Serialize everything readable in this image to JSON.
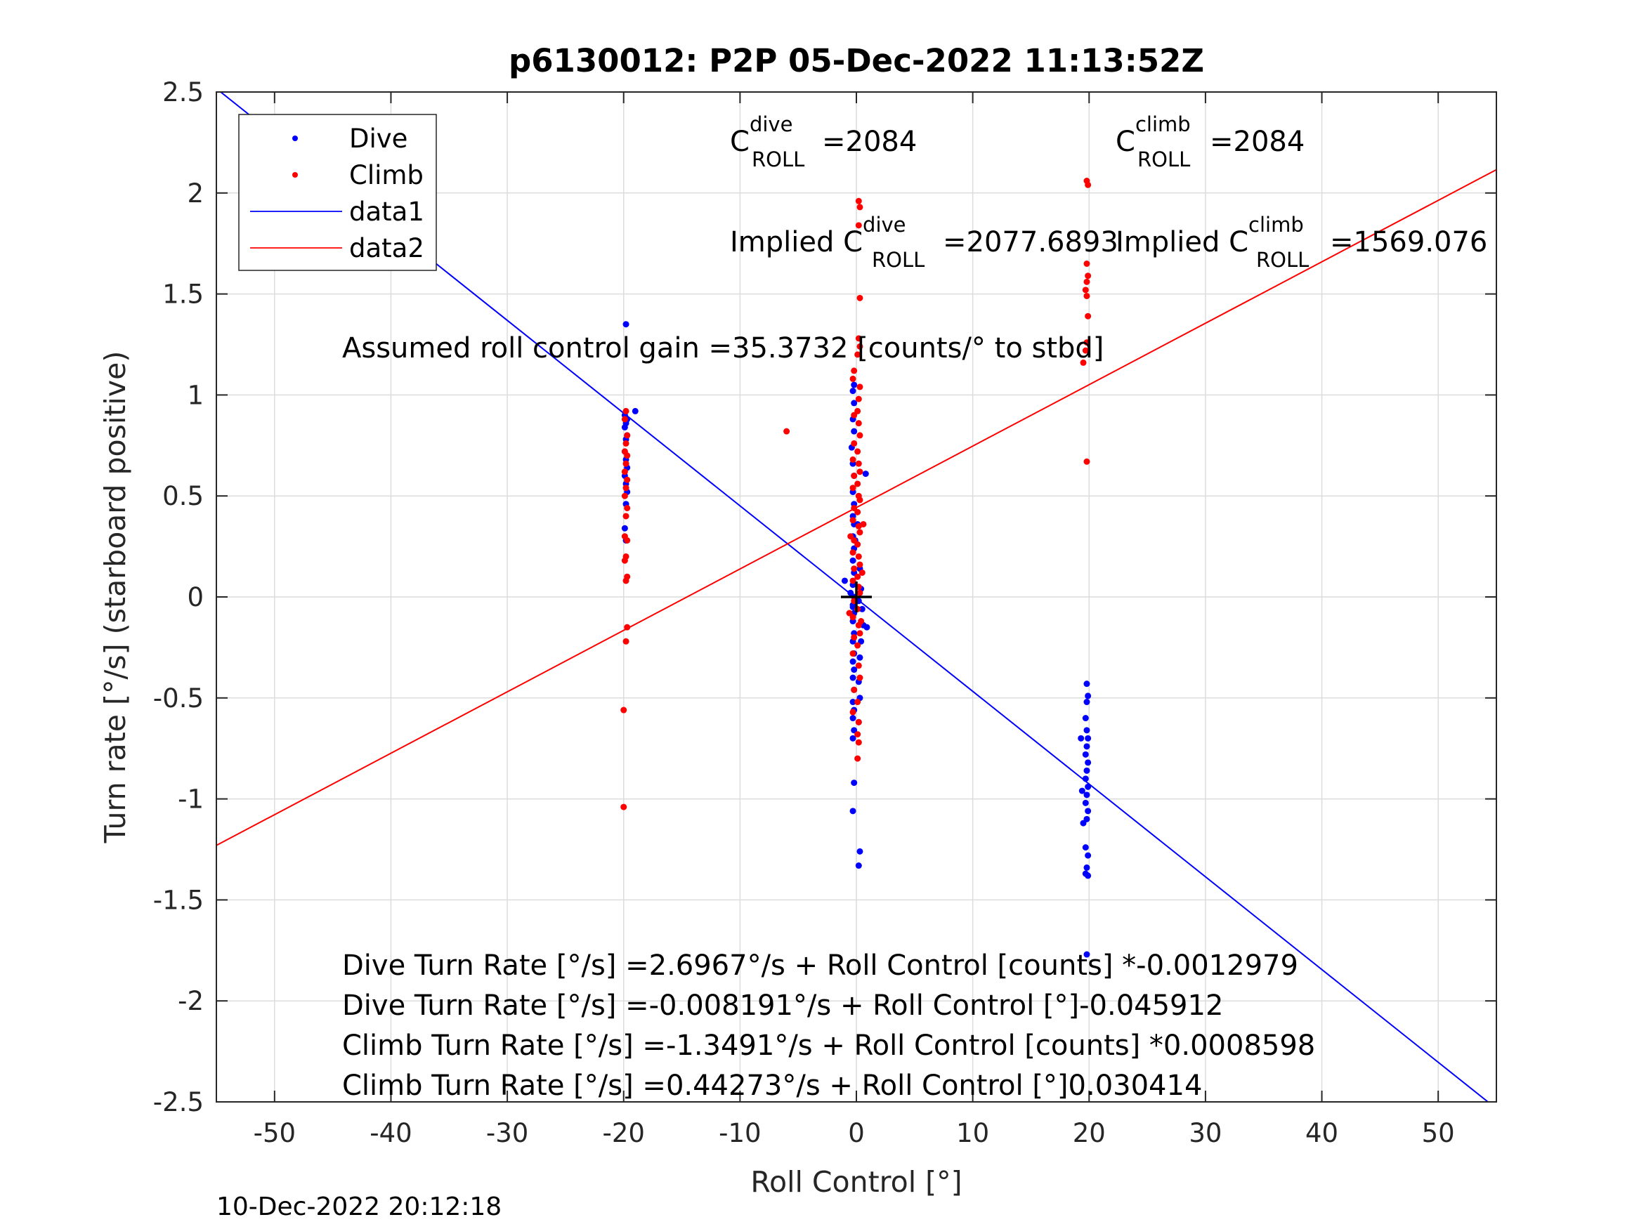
{
  "chart_data": {
    "type": "scatter",
    "title": "p6130012: P2P 05-Dec-2022 11:13:52Z",
    "xlabel": "Roll Control [°]",
    "ylabel": "Turn rate [°/s] (starboard positive)",
    "xlim": [
      -55,
      55
    ],
    "ylim": [
      -2.5,
      2.5
    ],
    "xticks": [
      -50,
      -40,
      -30,
      -20,
      -10,
      0,
      10,
      20,
      30,
      40,
      50
    ],
    "xtick_labels": [
      "-50",
      "-40",
      "-30",
      "-20",
      "-10",
      "0",
      "10",
      "20",
      "30",
      "40",
      "50"
    ],
    "yticks": [
      -2.5,
      -2,
      -1.5,
      -1,
      -0.5,
      0,
      0.5,
      1,
      1.5,
      2,
      2.5
    ],
    "ytick_labels": [
      "-2.5",
      "-2",
      "-1.5",
      "-1",
      "-0.5",
      "0",
      "0.5",
      "1",
      "1.5",
      "2",
      "2.5"
    ],
    "grid": true,
    "legend_position": "top-left",
    "legend": [
      "Dive",
      "Climb",
      "data1",
      "data2"
    ],
    "colors": {
      "dive": "#0000ff",
      "climb": "#ff0000",
      "axes": "#262626",
      "grid": "#dcdcdc",
      "marker": "#000000"
    },
    "origin_marker": {
      "x": 0,
      "y": 0
    },
    "series": [
      {
        "name": "Dive",
        "kind": "points",
        "points": [
          [
            -19.8,
            1.35
          ],
          [
            -19.0,
            0.92
          ],
          [
            -19.9,
            0.9
          ],
          [
            -19.7,
            0.88
          ],
          [
            -19.8,
            0.86
          ],
          [
            -19.9,
            0.84
          ],
          [
            -19.7,
            0.8
          ],
          [
            -19.8,
            0.78
          ],
          [
            -19.9,
            0.72
          ],
          [
            -19.8,
            0.68
          ],
          [
            -19.7,
            0.64
          ],
          [
            -19.9,
            0.6
          ],
          [
            -19.8,
            0.56
          ],
          [
            -19.7,
            0.52
          ],
          [
            -19.8,
            0.46
          ],
          [
            -19.9,
            0.34
          ],
          [
            -19.8,
            0.28
          ],
          [
            -1.0,
            0.08
          ],
          [
            -0.5,
            0.02
          ],
          [
            -0.3,
            -0.04
          ],
          [
            -0.2,
            1.05
          ],
          [
            -0.3,
            1.02
          ],
          [
            -0.2,
            0.96
          ],
          [
            -0.3,
            0.88
          ],
          [
            -0.2,
            0.82
          ],
          [
            -0.4,
            0.74
          ],
          [
            -0.3,
            0.66
          ],
          [
            -0.2,
            0.6
          ],
          [
            -0.3,
            0.52
          ],
          [
            -0.2,
            0.46
          ],
          [
            -0.3,
            0.4
          ],
          [
            -0.2,
            0.36
          ],
          [
            -0.3,
            0.3
          ],
          [
            -0.2,
            0.24
          ],
          [
            -0.3,
            0.18
          ],
          [
            -0.2,
            0.12
          ],
          [
            -0.3,
            0.06
          ],
          [
            -0.2,
            0.0
          ],
          [
            -0.3,
            -0.05
          ],
          [
            -0.2,
            -0.08
          ],
          [
            -0.3,
            -0.12
          ],
          [
            -0.2,
            -0.18
          ],
          [
            -0.3,
            -0.22
          ],
          [
            -0.2,
            -0.28
          ],
          [
            -0.3,
            -0.32
          ],
          [
            -0.2,
            -0.36
          ],
          [
            -0.3,
            -0.4
          ],
          [
            -0.2,
            -0.46
          ],
          [
            -0.3,
            -0.52
          ],
          [
            -0.2,
            -0.56
          ],
          [
            -0.3,
            -0.6
          ],
          [
            -0.2,
            -0.66
          ],
          [
            -0.3,
            -0.7
          ],
          [
            -0.2,
            -0.92
          ],
          [
            -0.3,
            -1.06
          ],
          [
            0.2,
            -0.02
          ],
          [
            0.4,
            0.04
          ],
          [
            0.3,
            0.14
          ],
          [
            0.5,
            -0.06
          ],
          [
            0.4,
            -0.22
          ],
          [
            0.3,
            -0.3
          ],
          [
            0.2,
            -0.42
          ],
          [
            0.3,
            -0.5
          ],
          [
            0.2,
            -0.62
          ],
          [
            0.3,
            -1.26
          ],
          [
            0.2,
            -1.33
          ],
          [
            0.6,
            -0.14
          ],
          [
            0.8,
            0.61
          ],
          [
            0.9,
            -0.15
          ],
          [
            0.1,
            0.36
          ],
          [
            -0.1,
            0.28
          ],
          [
            19.8,
            -0.43
          ],
          [
            19.9,
            -0.49
          ],
          [
            19.8,
            -0.52
          ],
          [
            19.7,
            -0.6
          ],
          [
            19.8,
            -0.66
          ],
          [
            19.9,
            -0.7
          ],
          [
            19.8,
            -0.74
          ],
          [
            19.7,
            -0.78
          ],
          [
            19.9,
            -0.82
          ],
          [
            19.8,
            -0.86
          ],
          [
            19.7,
            -0.9
          ],
          [
            19.9,
            -0.94
          ],
          [
            19.8,
            -0.98
          ],
          [
            19.7,
            -1.02
          ],
          [
            19.9,
            -1.06
          ],
          [
            19.8,
            -1.1
          ],
          [
            19.7,
            -1.24
          ],
          [
            19.9,
            -1.28
          ],
          [
            19.8,
            -1.34
          ],
          [
            19.7,
            -1.37
          ],
          [
            19.9,
            -1.38
          ],
          [
            19.8,
            -1.77
          ],
          [
            19.3,
            -0.7
          ],
          [
            19.5,
            -1.12
          ],
          [
            19.4,
            -0.96
          ]
        ]
      },
      {
        "name": "Climb",
        "kind": "points",
        "points": [
          [
            -19.8,
            0.92
          ],
          [
            -19.9,
            0.88
          ],
          [
            -19.7,
            0.8
          ],
          [
            -19.8,
            0.76
          ],
          [
            -19.9,
            0.72
          ],
          [
            -19.7,
            0.7
          ],
          [
            -19.8,
            0.66
          ],
          [
            -19.9,
            0.62
          ],
          [
            -19.7,
            0.58
          ],
          [
            -19.8,
            0.54
          ],
          [
            -19.9,
            0.5
          ],
          [
            -19.7,
            0.44
          ],
          [
            -19.8,
            0.4
          ],
          [
            -19.9,
            0.3
          ],
          [
            -19.7,
            0.28
          ],
          [
            -19.8,
            0.2
          ],
          [
            -19.9,
            0.18
          ],
          [
            -19.7,
            0.1
          ],
          [
            -19.8,
            0.08
          ],
          [
            -19.7,
            -0.15
          ],
          [
            -19.8,
            -0.22
          ],
          [
            -20.0,
            -0.56
          ],
          [
            -20.0,
            -1.04
          ],
          [
            -6.0,
            0.82
          ],
          [
            0.2,
            1.96
          ],
          [
            0.3,
            1.93
          ],
          [
            0.2,
            1.84
          ],
          [
            0.3,
            1.48
          ],
          [
            0.2,
            1.28
          ],
          [
            0.3,
            1.24
          ],
          [
            0.1,
            1.2
          ],
          [
            -0.2,
            1.12
          ],
          [
            -0.3,
            1.08
          ],
          [
            0.3,
            1.04
          ],
          [
            0.2,
            0.98
          ],
          [
            0.1,
            0.92
          ],
          [
            -0.2,
            0.9
          ],
          [
            0.2,
            0.86
          ],
          [
            0.3,
            0.8
          ],
          [
            -0.2,
            0.76
          ],
          [
            0.1,
            0.72
          ],
          [
            -0.3,
            0.68
          ],
          [
            0.2,
            0.66
          ],
          [
            0.3,
            0.62
          ],
          [
            -0.2,
            0.6
          ],
          [
            0.1,
            0.56
          ],
          [
            -0.3,
            0.54
          ],
          [
            0.2,
            0.5
          ],
          [
            0.3,
            0.48
          ],
          [
            -0.2,
            0.44
          ],
          [
            0.1,
            0.42
          ],
          [
            -0.3,
            0.38
          ],
          [
            0.2,
            0.35
          ],
          [
            0.3,
            0.32
          ],
          [
            -0.2,
            0.28
          ],
          [
            0.1,
            0.26
          ],
          [
            -0.3,
            0.22
          ],
          [
            0.2,
            0.2
          ],
          [
            0.3,
            0.16
          ],
          [
            -0.2,
            0.14
          ],
          [
            0.1,
            0.1
          ],
          [
            -0.3,
            0.08
          ],
          [
            0.2,
            0.05
          ],
          [
            0.3,
            0.02
          ],
          [
            -0.2,
            -0.02
          ],
          [
            0.1,
            -0.06
          ],
          [
            -0.3,
            -0.1
          ],
          [
            0.2,
            -0.14
          ],
          [
            0.3,
            -0.18
          ],
          [
            -0.2,
            -0.2
          ],
          [
            0.1,
            -0.24
          ],
          [
            -0.3,
            -0.28
          ],
          [
            0.2,
            -0.34
          ],
          [
            0.3,
            -0.4
          ],
          [
            -0.2,
            -0.46
          ],
          [
            0.1,
            -0.52
          ],
          [
            -0.3,
            -0.57
          ],
          [
            0.2,
            -0.62
          ],
          [
            0.1,
            -0.68
          ],
          [
            0.2,
            -0.72
          ],
          [
            0.1,
            -0.8
          ],
          [
            0.6,
            0.36
          ],
          [
            0.5,
            0.12
          ],
          [
            -0.5,
            0.3
          ],
          [
            -0.6,
            -0.08
          ],
          [
            0.4,
            -0.12
          ],
          [
            19.8,
            2.06
          ],
          [
            19.9,
            2.04
          ],
          [
            19.8,
            1.65
          ],
          [
            19.9,
            1.59
          ],
          [
            19.8,
            1.56
          ],
          [
            19.7,
            1.52
          ],
          [
            19.8,
            1.49
          ],
          [
            19.9,
            1.39
          ],
          [
            19.8,
            1.26
          ],
          [
            19.7,
            1.22
          ],
          [
            19.5,
            1.16
          ],
          [
            19.8,
            0.67
          ]
        ]
      },
      {
        "name": "data1",
        "kind": "line",
        "intercept": -0.008191,
        "slope": -0.045912
      },
      {
        "name": "data2",
        "kind": "line",
        "intercept": 0.44273,
        "slope": 0.030414
      }
    ],
    "annotations": {
      "c_dive": {
        "base": "C",
        "sup": "dive",
        "sub": "ROLL",
        "value": "=2084"
      },
      "c_climb": {
        "base": "C",
        "sup": "climb",
        "sub": "ROLL",
        "value": "=2084"
      },
      "implied_dive": {
        "base": "Implied C",
        "sup": "dive",
        "sub": "ROLL",
        "value": "=2077.6893"
      },
      "implied_climb": {
        "base": "Implied C",
        "sup": "climb",
        "sub": "ROLL",
        "value": "=1569.076"
      },
      "gain": "Assumed roll control gain =35.3732 [counts/° to stbd]",
      "equations": [
        "Dive Turn Rate [°/s] =2.6967°/s + Roll Control [counts] *-0.0012979",
        "Dive Turn Rate [°/s] =-0.008191°/s + Roll Control [°]-0.045912",
        "Climb Turn Rate [°/s] =-1.3491°/s + Roll Control [counts] *0.0008598",
        "Climb Turn Rate [°/s] =0.44273°/s + Roll Control [°]0.030414"
      ]
    },
    "timestamp": "10-Dec-2022 20:12:18"
  }
}
